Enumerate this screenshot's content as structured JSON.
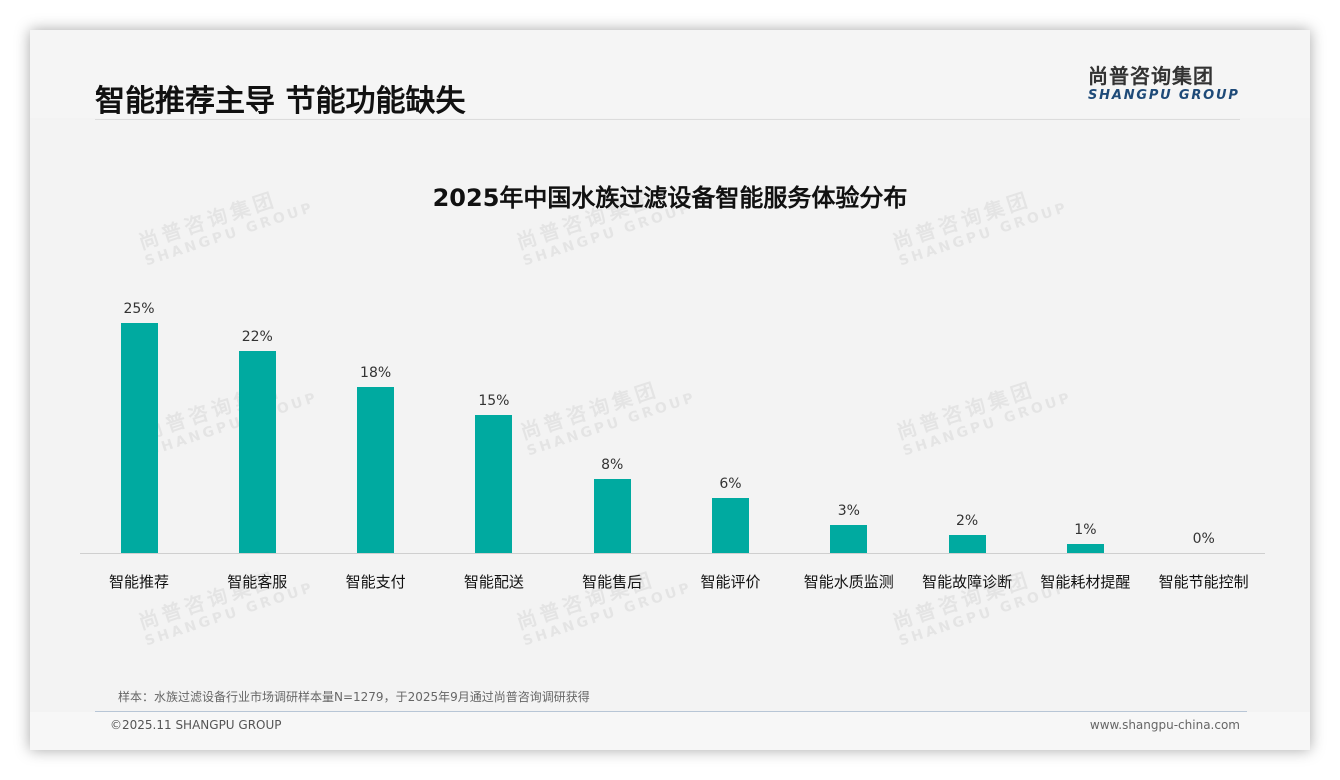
{
  "header": {
    "title": "智能推荐主导 节能功能缺失",
    "logo_cn": "尚普咨询集团",
    "logo_en": "SHANGPU GROUP"
  },
  "watermark": {
    "cn": "尚普咨询集团",
    "en": "SHANGPU GROUP"
  },
  "colors": {
    "bar": "#00aaa0",
    "logo_en": "#1e4a78"
  },
  "chart_data": {
    "type": "bar",
    "title": "2025年中国水族过滤设备智能服务体验分布",
    "xlabel": "",
    "ylabel": "",
    "categories": [
      "智能推荐",
      "智能客服",
      "智能支付",
      "智能配送",
      "智能售后",
      "智能评价",
      "智能水质监测",
      "智能故障诊断",
      "智能耗材提醒",
      "智能节能控制"
    ],
    "values": [
      25,
      22,
      18,
      15,
      8,
      6,
      3,
      2,
      1,
      0
    ],
    "value_labels": [
      "25%",
      "22%",
      "18%",
      "15%",
      "8%",
      "6%",
      "3%",
      "2%",
      "1%",
      "0%"
    ],
    "unit": "%",
    "ylim": [
      0,
      25
    ],
    "grid": false,
    "legend": "none",
    "data_labels": true
  },
  "footer": {
    "note": "样本：水族过滤设备行业市场调研样本量N=1279，于2025年9月通过尚普咨询调研获得",
    "copyright": "©2025.11 SHANGPU GROUP",
    "website": "www.shangpu-china.com"
  }
}
